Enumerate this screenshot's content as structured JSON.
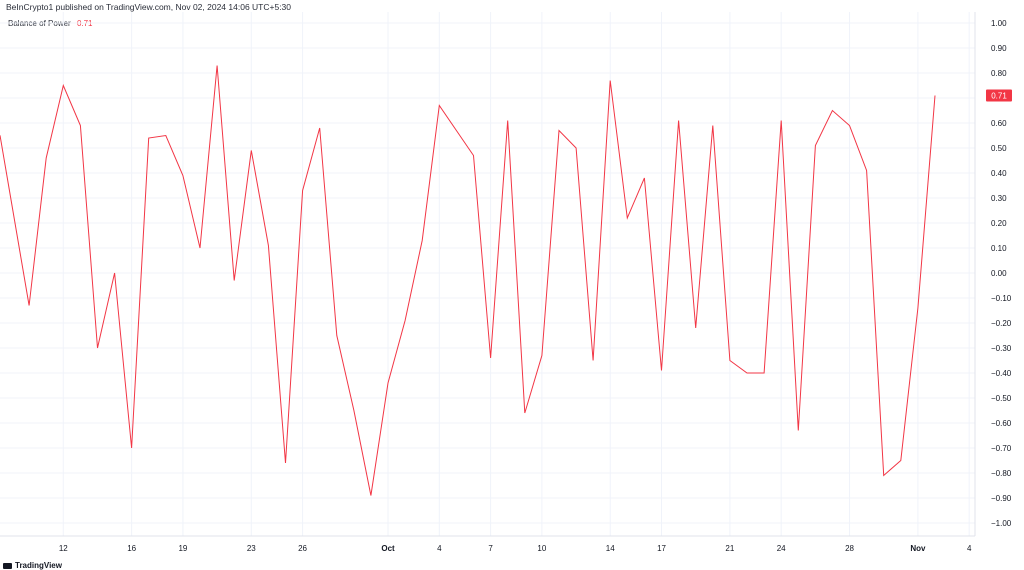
{
  "header": {
    "published_text": "BeInCrypto1 published on TradingView.com, Nov 02, 2024 14:06 UTC+5:30"
  },
  "legend": {
    "indicator_name": "Balance of Power",
    "indicator_value": "0.71"
  },
  "footer": {
    "brand": "TradingView"
  },
  "colors": {
    "line": "#f23645",
    "grid": "#f0f3fa",
    "axis_text": "#131722",
    "price_label_bg": "#f23645"
  },
  "chart_data": {
    "type": "line",
    "title": "",
    "xlabel": "",
    "ylabel": "",
    "ylim": [
      -1.0,
      1.0
    ],
    "grid": true,
    "y_ticks": [
      "1.00",
      "0.90",
      "0.80",
      "0.70",
      "0.60",
      "0.50",
      "0.40",
      "0.30",
      "0.20",
      "0.10",
      "0.00",
      "−0.10",
      "−0.20",
      "−0.30",
      "−0.40",
      "−0.50",
      "−0.60",
      "−0.70",
      "−0.80",
      "−0.90",
      "−1.00"
    ],
    "y_tick_values": [
      1.0,
      0.9,
      0.8,
      0.7,
      0.6,
      0.5,
      0.4,
      0.3,
      0.2,
      0.1,
      0.0,
      -0.1,
      -0.2,
      -0.3,
      -0.4,
      -0.5,
      -0.6,
      -0.7,
      -0.8,
      -0.9,
      -1.0
    ],
    "x_ticks": [
      {
        "label": "12",
        "date": "2024-09-12"
      },
      {
        "label": "16",
        "date": "2024-09-16"
      },
      {
        "label": "19",
        "date": "2024-09-19"
      },
      {
        "label": "23",
        "date": "2024-09-23"
      },
      {
        "label": "26",
        "date": "2024-09-26"
      },
      {
        "label": "Oct",
        "date": "2024-10-01",
        "bold": true
      },
      {
        "label": "4",
        "date": "2024-10-04"
      },
      {
        "label": "7",
        "date": "2024-10-07"
      },
      {
        "label": "10",
        "date": "2024-10-10"
      },
      {
        "label": "14",
        "date": "2024-10-14"
      },
      {
        "label": "17",
        "date": "2024-10-17"
      },
      {
        "label": "21",
        "date": "2024-10-21"
      },
      {
        "label": "24",
        "date": "2024-10-24"
      },
      {
        "label": "28",
        "date": "2024-10-28"
      },
      {
        "label": "Nov",
        "date": "2024-11-01",
        "bold": true
      },
      {
        "label": "4",
        "date": "2024-11-04"
      }
    ],
    "x_range": [
      "2024-09-09",
      "2024-11-05"
    ],
    "series": [
      {
        "x": [
          "2024-09-09",
          "2024-09-10",
          "2024-09-11",
          "2024-09-12",
          "2024-09-13",
          "2024-09-14",
          "2024-09-15",
          "2024-09-16",
          "2024-09-17",
          "2024-09-18",
          "2024-09-19",
          "2024-09-20",
          "2024-09-21",
          "2024-09-22",
          "2024-09-23",
          "2024-09-24",
          "2024-09-25",
          "2024-09-26",
          "2024-09-27",
          "2024-09-28",
          "2024-09-29",
          "2024-09-30",
          "2024-10-01",
          "2024-10-02",
          "2024-10-03",
          "2024-10-04",
          "2024-10-05",
          "2024-10-06",
          "2024-10-07",
          "2024-10-08",
          "2024-10-09",
          "2024-10-10",
          "2024-10-11",
          "2024-10-12",
          "2024-10-13",
          "2024-10-14",
          "2024-10-15",
          "2024-10-16",
          "2024-10-17",
          "2024-10-18",
          "2024-10-19",
          "2024-10-20",
          "2024-10-21",
          "2024-10-22",
          "2024-10-23",
          "2024-10-24",
          "2024-10-25",
          "2024-10-26",
          "2024-10-27",
          "2024-10-28",
          "2024-10-29",
          "2024-10-30",
          "2024-10-31",
          "2024-11-01",
          "2024-11-02"
        ],
        "values": [
          0.27,
          -0.13,
          0.46,
          0.75,
          0.59,
          -0.3,
          0.0,
          -0.7,
          0.54,
          0.55,
          0.39,
          0.1,
          0.83,
          -0.03,
          0.49,
          0.11,
          -0.76,
          0.33,
          0.58,
          -0.25,
          -0.55,
          -0.89,
          -0.44,
          -0.19,
          0.13,
          0.67,
          0.57,
          0.47,
          -0.34,
          0.61,
          -0.56,
          -0.33,
          0.57,
          0.5,
          -0.35,
          0.77,
          0.22,
          0.38,
          -0.39,
          0.61,
          -0.22,
          0.59,
          -0.35,
          -0.4,
          -0.4,
          0.61,
          -0.63,
          0.51,
          0.65,
          0.59,
          0.41,
          -0.81,
          -0.75,
          -0.14,
          0.71
        ]
      }
    ]
  }
}
